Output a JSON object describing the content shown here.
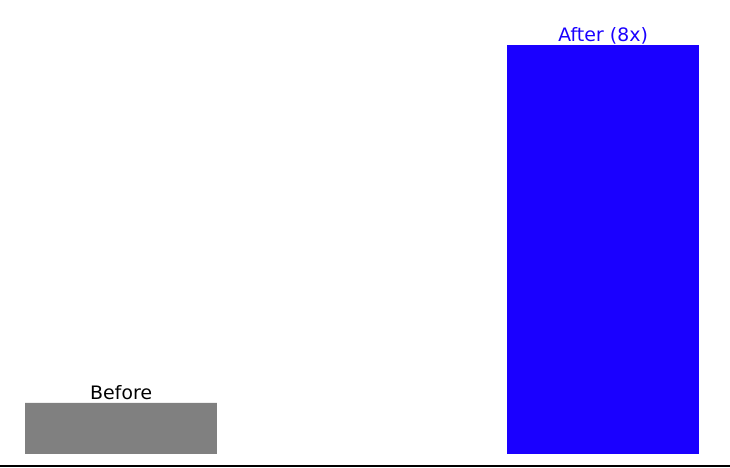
{
  "chart_data": {
    "type": "bar",
    "categories": [
      "Before",
      "After (8x)"
    ],
    "values": [
      1,
      8
    ],
    "colors": [
      "#808080",
      "#1a00ff"
    ],
    "label_colors": [
      "#000000",
      "#1a00ff"
    ],
    "title": "",
    "xlabel": "",
    "ylabel": "",
    "ylim": [
      0,
      8
    ],
    "grid": false,
    "legend": "none"
  }
}
